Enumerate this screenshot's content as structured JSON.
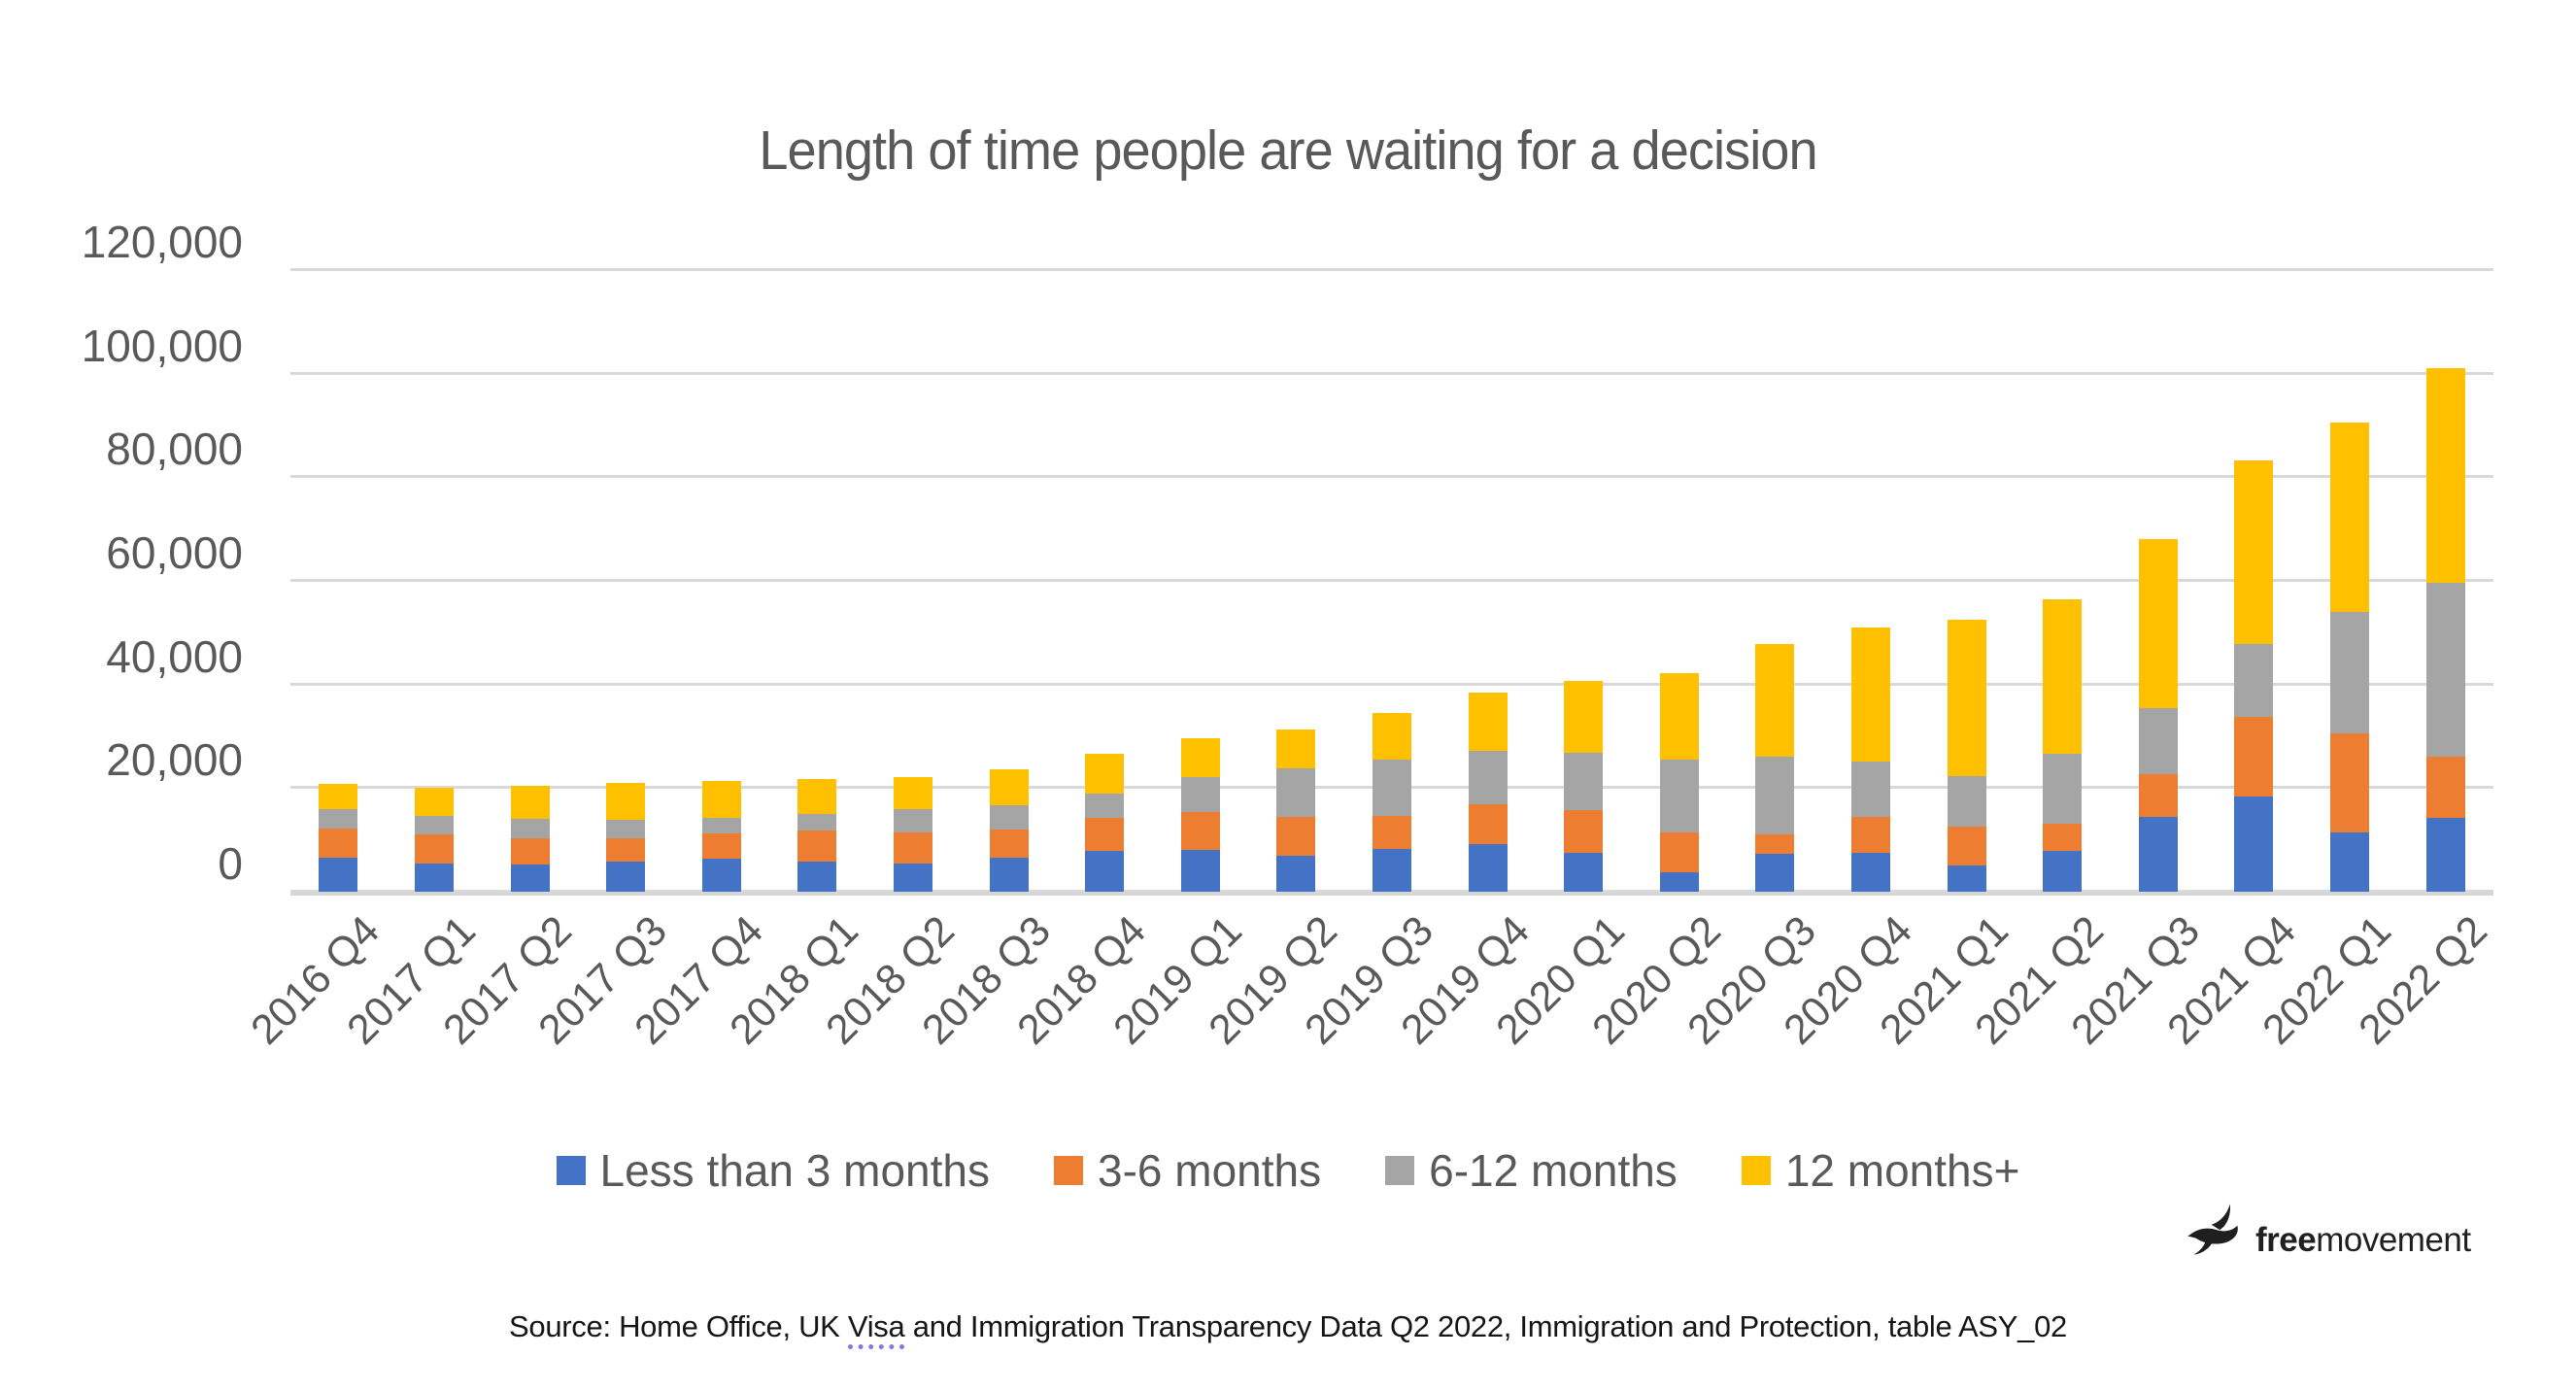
{
  "title": "Length of time people are waiting for a decision",
  "logo": {
    "bold": "free",
    "regular": "movement"
  },
  "source": {
    "prefix": "Source: Home Office, UK ",
    "underlined_word": "Visa",
    "suffix": " and Immigration Transparency Data Q2 2022, Immigration and Protection, table ASY_02"
  },
  "chart_data": {
    "type": "bar",
    "stacked": true,
    "title": "Length of time people are waiting for a decision",
    "xlabel": "",
    "ylabel": "",
    "ylim": [
      0,
      120000
    ],
    "gridlines": true,
    "legend_position": "bottom",
    "y_ticks": [
      "0",
      "20,000",
      "40,000",
      "60,000",
      "80,000",
      "100,000",
      "120,000"
    ],
    "categories": [
      "2016 Q4",
      "2017 Q1",
      "2017 Q2",
      "2017 Q3",
      "2017 Q4",
      "2018 Q1",
      "2018 Q2",
      "2018 Q3",
      "2018 Q4",
      "2019 Q1",
      "2019 Q2",
      "2019 Q3",
      "2019 Q4",
      "2020 Q1",
      "2020 Q2",
      "2020 Q3",
      "2020 Q4",
      "2021 Q1",
      "2021 Q2",
      "2021 Q3",
      "2021 Q4",
      "2022 Q1",
      "2022 Q2"
    ],
    "series": [
      {
        "name": "Less than 3 months",
        "color": "#4472C4",
        "values": [
          7000,
          5800,
          5600,
          6100,
          6700,
          6200,
          5900,
          7000,
          8200,
          8500,
          7300,
          8600,
          9500,
          7800,
          4200,
          7600,
          7800,
          5500,
          8300,
          14900,
          18800,
          11900,
          14700
        ]
      },
      {
        "name": "3-6 months",
        "color": "#ED7D31",
        "values": [
          5500,
          5600,
          5000,
          4650,
          4900,
          5900,
          5850,
          5400,
          6400,
          7300,
          7500,
          6400,
          7800,
          8300,
          7700,
          3800,
          7100,
          7400,
          5200,
          8100,
          15300,
          19100,
          11800
        ]
      },
      {
        "name": "6-12 months",
        "color": "#A5A5A5",
        "values": [
          3900,
          3600,
          3900,
          3500,
          3000,
          3350,
          4550,
          4650,
          4750,
          6700,
          9400,
          10900,
          10300,
          11000,
          13900,
          15100,
          10600,
          9850,
          13500,
          12850,
          14000,
          23400,
          33500
        ]
      },
      {
        "name": "12 months+",
        "color": "#FFC000",
        "values": [
          4850,
          5400,
          6400,
          7150,
          7200,
          6650,
          6200,
          6950,
          7650,
          7500,
          7500,
          9000,
          11150,
          13900,
          16800,
          21600,
          25900,
          30050,
          29900,
          32650,
          35600,
          36600,
          41500
        ]
      }
    ],
    "totals": [
      21250,
      20400,
      20900,
      21400,
      21800,
      22100,
      22500,
      24000,
      27000,
      30000,
      31700,
      34900,
      38750,
      41000,
      42600,
      48100,
      51400,
      52800,
      56900,
      68500,
      83700,
      91000,
      101500
    ]
  }
}
